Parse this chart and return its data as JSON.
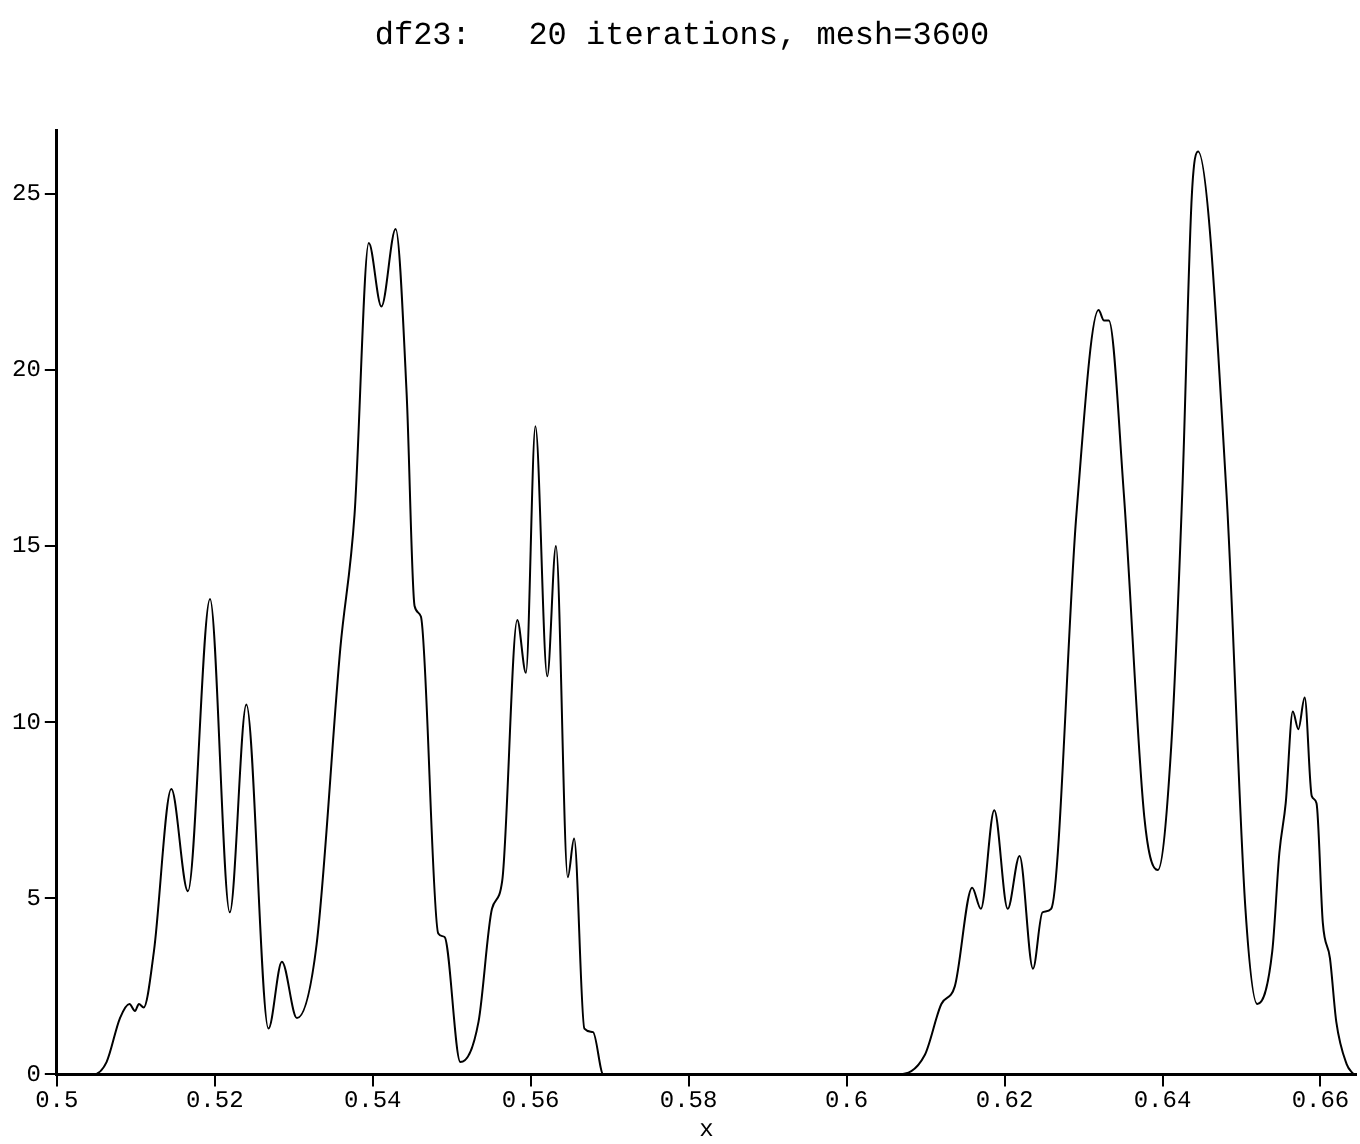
{
  "chart_data": {
    "type": "line",
    "title": "df23:   20 iterations, mesh=3600",
    "xlabel": "x",
    "xlim": [
      0.5,
      0.6645
    ],
    "ylim": [
      0,
      26.8
    ],
    "xticks": [
      0.5,
      0.52,
      0.54,
      0.56,
      0.58,
      0.6,
      0.62,
      0.64,
      0.66
    ],
    "yticks": [
      0,
      5,
      10,
      15,
      20,
      25
    ],
    "grid": false,
    "legend": false,
    "series": [
      {
        "color": "#000000",
        "x": [
          0.5,
          0.5046,
          0.5063,
          0.508,
          0.5092,
          0.5099,
          0.5104,
          0.511,
          0.5123,
          0.5145,
          0.5166,
          0.5194,
          0.5219,
          0.524,
          0.5268,
          0.5285,
          0.5304,
          0.5329,
          0.5359,
          0.5377,
          0.5395,
          0.5411,
          0.5429,
          0.5443,
          0.5453,
          0.5461,
          0.5483,
          0.5491,
          0.5511,
          0.5534,
          0.5551,
          0.5564,
          0.5583,
          0.5594,
          0.5606,
          0.5621,
          0.5632,
          0.5647,
          0.5655,
          0.5668,
          0.5679,
          0.5692,
          0.6065,
          0.6099,
          0.612,
          0.6137,
          0.6159,
          0.617,
          0.6187,
          0.6204,
          0.6219,
          0.6236,
          0.6248,
          0.6259,
          0.6291,
          0.6319,
          0.6326,
          0.6332,
          0.6351,
          0.6377,
          0.6394,
          0.6411,
          0.6425,
          0.6437,
          0.6445,
          0.6481,
          0.6505,
          0.652,
          0.6539,
          0.6548,
          0.6556,
          0.6565,
          0.6572,
          0.658,
          0.6589,
          0.6595,
          0.6603,
          0.6612,
          0.662,
          0.6633,
          0.6642
        ],
        "values": [
          0,
          0,
          0.35,
          1.6,
          2.0,
          1.8,
          2.0,
          1.9,
          3.5,
          8.1,
          5.2,
          13.5,
          4.6,
          10.5,
          1.3,
          3.2,
          1.6,
          3.7,
          12.1,
          15.9,
          23.6,
          21.8,
          24.0,
          19.3,
          13.3,
          13.0,
          4.0,
          3.9,
          0.35,
          1.5,
          4.7,
          5.5,
          12.9,
          11.4,
          18.4,
          11.3,
          15.0,
          5.6,
          6.7,
          1.3,
          1.2,
          0,
          0,
          0.55,
          2.0,
          2.5,
          5.3,
          4.7,
          7.5,
          4.7,
          6.2,
          3.0,
          4.6,
          4.7,
          15.9,
          21.7,
          21.4,
          21.4,
          16.5,
          7.3,
          5.8,
          9.3,
          16.5,
          24.9,
          26.2,
          16.5,
          4.7,
          2.0,
          3.5,
          6.3,
          7.7,
          10.3,
          9.8,
          10.7,
          7.9,
          7.7,
          4.3,
          3.3,
          1.5,
          0.3,
          0
        ]
      }
    ]
  }
}
